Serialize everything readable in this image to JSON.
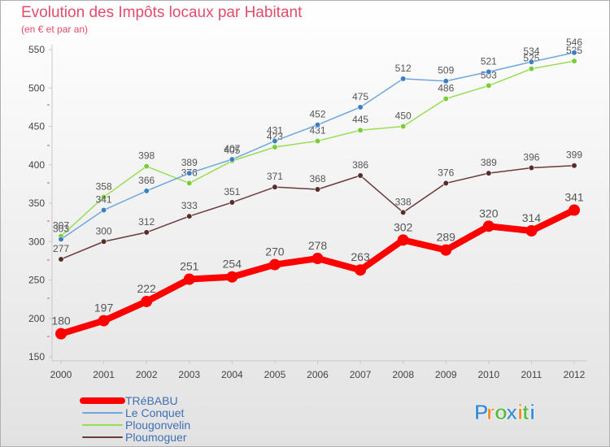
{
  "chart_data": {
    "type": "line",
    "title": "Evolution des Impôts locaux par Habitant",
    "subtitle": "(en € et par an)",
    "xlabel": "",
    "ylabel": "",
    "x": [
      "2000",
      "2001",
      "2002",
      "2003",
      "2004",
      "2005",
      "2006",
      "2007",
      "2008",
      "2009",
      "2010",
      "2011",
      "2012"
    ],
    "ylim": [
      150,
      550
    ],
    "yticks": [
      150,
      200,
      250,
      300,
      350,
      400,
      450,
      500,
      550
    ],
    "grid": false,
    "legend_position": "bottom-left",
    "series": [
      {
        "name": "TRéBABU",
        "color": "#ff0000",
        "values": [
          180,
          197,
          222,
          251,
          254,
          270,
          278,
          263,
          302,
          289,
          320,
          314,
          341
        ]
      },
      {
        "name": "Le Conquet",
        "color": "#6fa8dc",
        "values": [
          303,
          341,
          366,
          389,
          407,
          431,
          452,
          475,
          512,
          509,
          521,
          534,
          546
        ]
      },
      {
        "name": "Plougonvelin",
        "color": "#99dd55",
        "values": [
          307,
          358,
          398,
          376,
          405,
          423,
          431,
          445,
          450,
          486,
          503,
          525,
          535
        ]
      },
      {
        "name": "Ploumoguer",
        "color": "#6b3a3a",
        "values": [
          277,
          300,
          312,
          333,
          351,
          371,
          368,
          386,
          338,
          376,
          389,
          396,
          399
        ]
      }
    ]
  },
  "brand": {
    "letters": [
      "P",
      "r",
      "o",
      "x",
      "i",
      "t",
      "i"
    ],
    "colors": [
      "#3b8fd6",
      "#f28c28",
      "#58b947",
      "#3b8fd6",
      "#f28c28",
      "#58b947",
      "#3b8fd6"
    ]
  }
}
